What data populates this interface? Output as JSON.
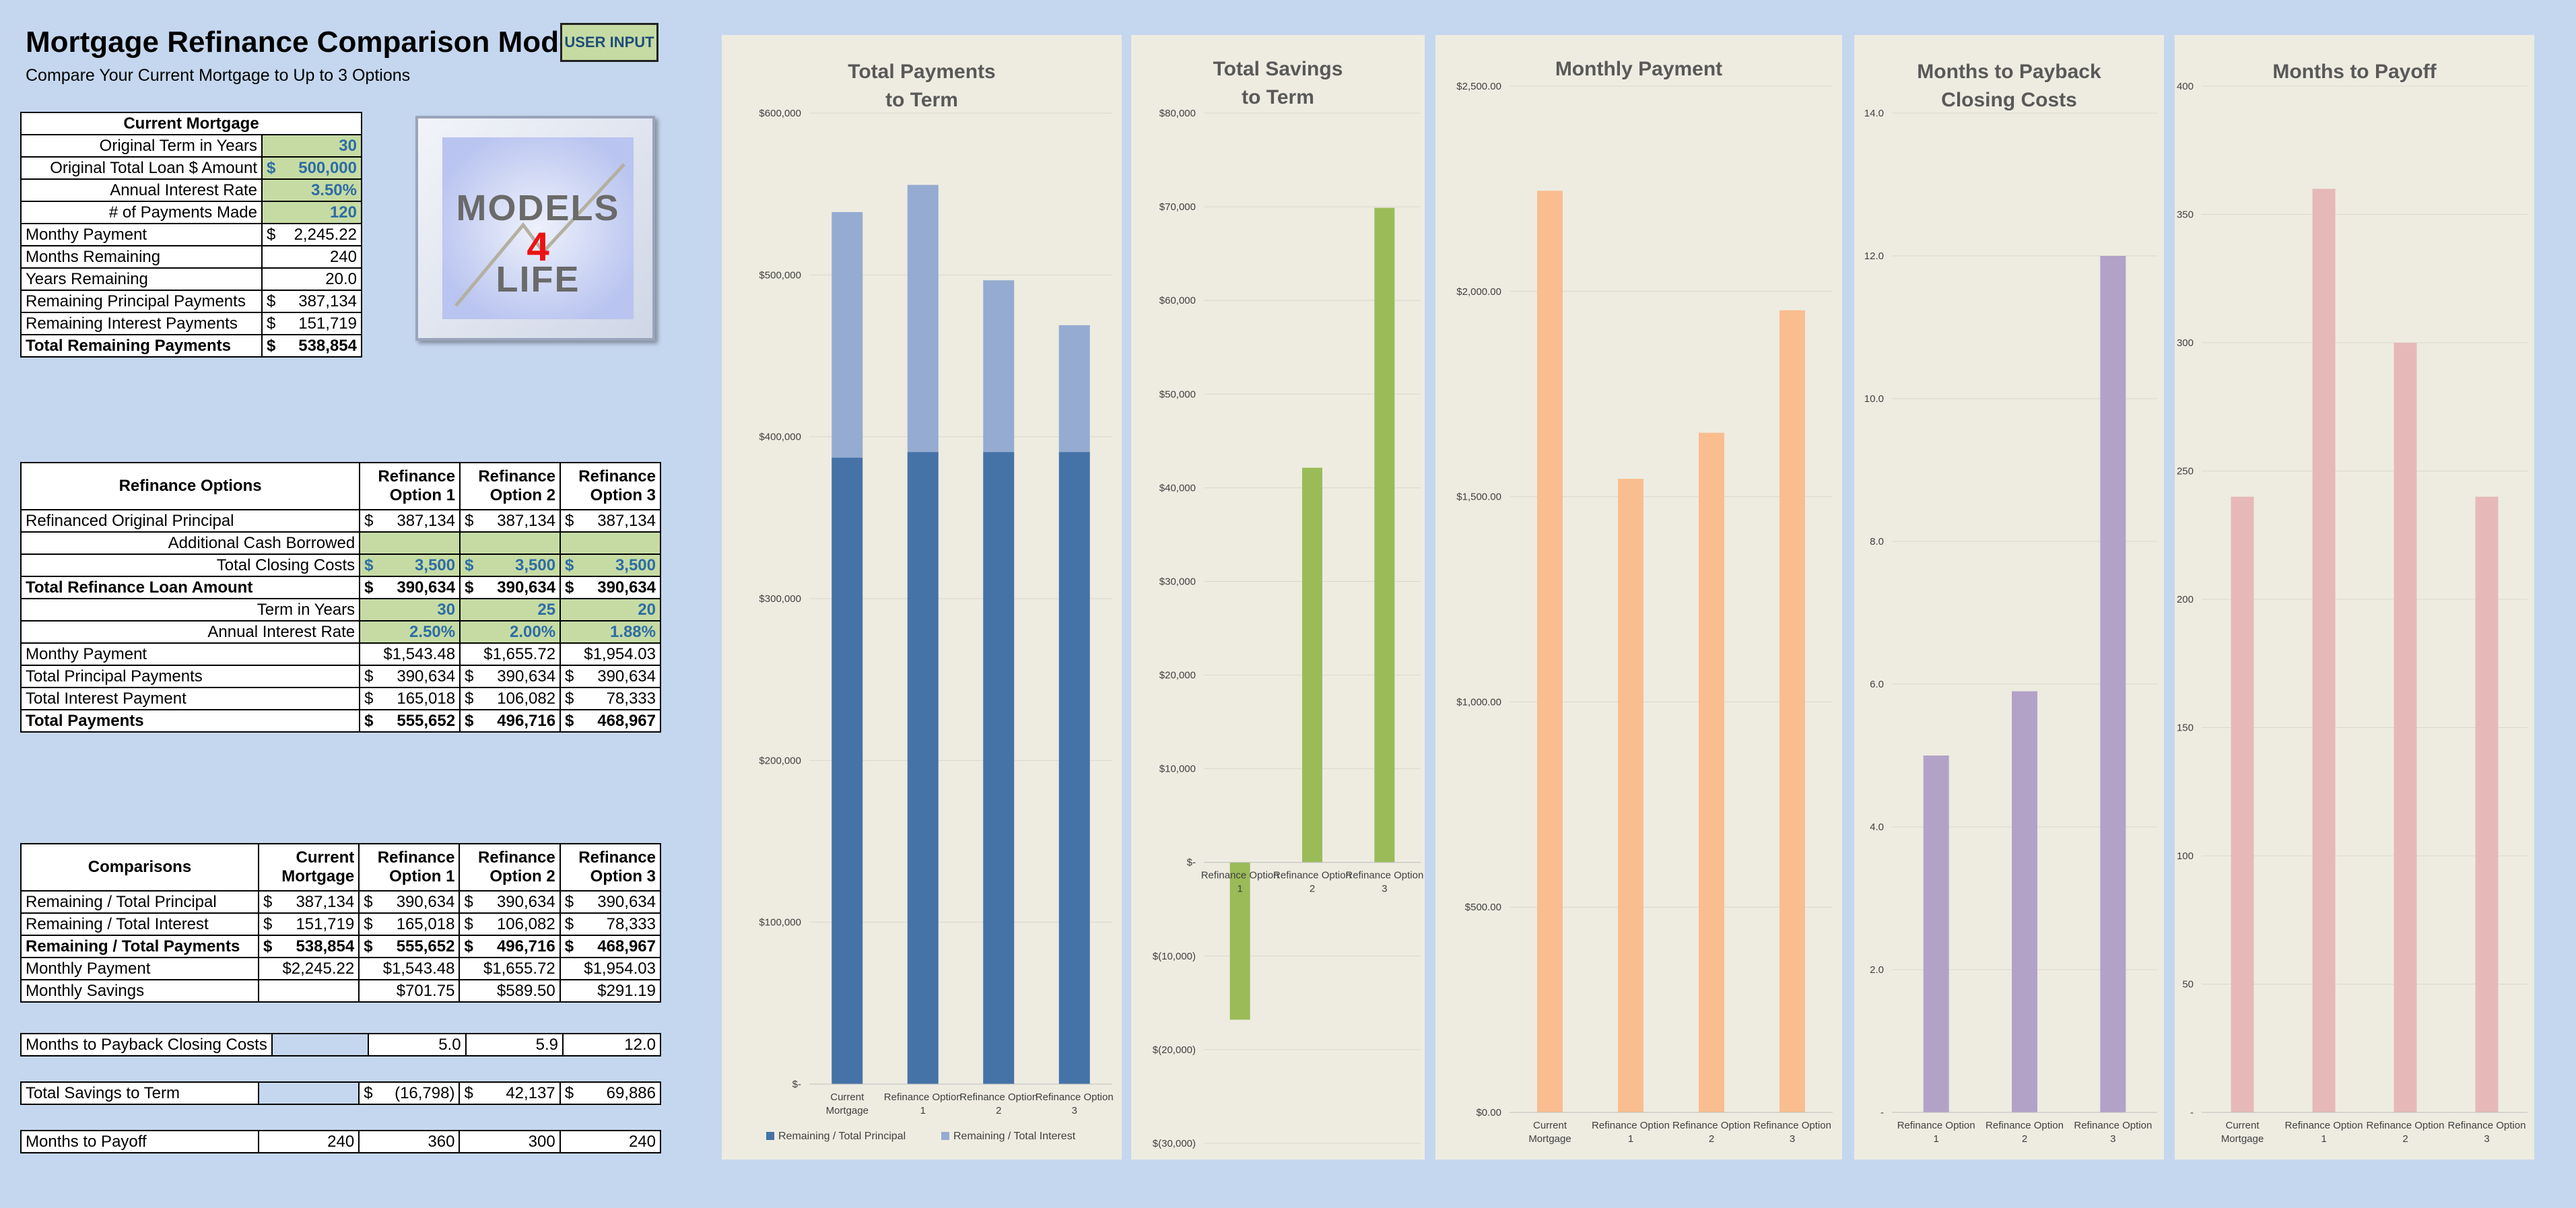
{
  "header": {
    "title": "Mortgage Refinance Comparison Model",
    "subtitle": "Compare Your Current Mortgage to Up to 3 Options",
    "user_input_label": "USER INPUT"
  },
  "logo": {
    "line1": "Models",
    "line2": "4",
    "line3": "Life"
  },
  "current_mortgage": {
    "heading": "Current Mortgage",
    "rows": [
      {
        "label": "Original Term in Years",
        "value": "30",
        "input": true,
        "align": "right"
      },
      {
        "label": "Original Total Loan $ Amount",
        "value": "500,000",
        "currency": true,
        "input": true,
        "align": "right"
      },
      {
        "label": "Annual Interest Rate",
        "value": "3.50%",
        "input": true,
        "align": "right"
      },
      {
        "label": "# of Payments Made",
        "value": "120",
        "input": true,
        "align": "right"
      },
      {
        "label": "Monthy Payment",
        "value": "2,245.22",
        "currency": true
      },
      {
        "label": "Months Remaining",
        "value": "240"
      },
      {
        "label": "Years Remaining",
        "value": "20.0"
      },
      {
        "label": "Remaining Principal Payments",
        "value": "387,134",
        "currency": true
      },
      {
        "label": "Remaining Interest Payments",
        "value": "151,719",
        "currency": true
      },
      {
        "label": "Total Remaining Payments",
        "value": "538,854",
        "currency": true,
        "bold": true
      }
    ]
  },
  "refinance_options": {
    "heading": "Refinance Options",
    "col_headers": [
      "Refinance Option 1",
      "Refinance Option 2",
      "Refinance Option 3"
    ],
    "rows": [
      {
        "label": "Refinanced Original Principal",
        "values": [
          "387,134",
          "387,134",
          "387,134"
        ],
        "currency": true
      },
      {
        "label": "Additional Cash Borrowed",
        "values": [
          "",
          "",
          ""
        ],
        "input": true,
        "label_align": "right"
      },
      {
        "label": "Total Closing Costs",
        "values": [
          "3,500",
          "3,500",
          "3,500"
        ],
        "currency": true,
        "input": true,
        "label_align": "right"
      },
      {
        "label": "Total Refinance Loan Amount",
        "values": [
          "390,634",
          "390,634",
          "390,634"
        ],
        "currency": true,
        "bold": true
      },
      {
        "label": "Term in Years",
        "values": [
          "30",
          "25",
          "20"
        ],
        "input": true,
        "label_align": "right"
      },
      {
        "label": "Annual Interest Rate",
        "values": [
          "2.50%",
          "2.00%",
          "1.88%"
        ],
        "input": true,
        "label_align": "right"
      },
      {
        "label": "Monthy Payment",
        "values": [
          "$1,543.48",
          "$1,655.72",
          "$1,954.03"
        ]
      },
      {
        "label": "Total Principal Payments",
        "values": [
          "390,634",
          "390,634",
          "390,634"
        ],
        "currency": true
      },
      {
        "label": "Total Interest Payment",
        "values": [
          "165,018",
          "106,082",
          "78,333"
        ],
        "currency": true
      },
      {
        "label": "Total Payments",
        "values": [
          "555,652",
          "496,716",
          "468,967"
        ],
        "currency": true,
        "bold": true
      }
    ]
  },
  "comparisons": {
    "heading": "Comparisons",
    "col_headers": [
      "Current Mortgage",
      "Refinance Option 1",
      "Refinance Option 2",
      "Refinance Option 3"
    ],
    "rows": [
      {
        "label": "Remaining / Total Principal",
        "values": [
          "387,134",
          "390,634",
          "390,634",
          "390,634"
        ],
        "currency": true
      },
      {
        "label": "Remaining / Total Interest",
        "values": [
          "151,719",
          "165,018",
          "106,082",
          "78,333"
        ],
        "currency": true
      },
      {
        "label": "Remaining / Total Payments",
        "values": [
          "538,854",
          "555,652",
          "496,716",
          "468,967"
        ],
        "currency": true,
        "bold": true
      },
      {
        "label": "Monthly Payment",
        "values": [
          "$2,245.22",
          "$1,543.48",
          "$1,655.72",
          "$1,954.03"
        ]
      },
      {
        "label": "Monthly Savings",
        "values": [
          "",
          "$701.75",
          "$589.50",
          "$291.19"
        ]
      }
    ],
    "payback": {
      "label": "Months to Payback Closing Costs",
      "values": [
        "5.0",
        "5.9",
        "12.0"
      ]
    },
    "savings": {
      "label": "Total Savings to Term",
      "values": [
        "(16,798)",
        "42,137",
        "69,886"
      ]
    },
    "payoff": {
      "label": "Months to Payoff",
      "values": [
        "240",
        "360",
        "300",
        "240"
      ]
    }
  },
  "chart_data": [
    {
      "type": "bar",
      "stacked": true,
      "title": "Total Payments to Term",
      "title_lines": [
        "Total Payments",
        "to Term"
      ],
      "categories": [
        "Current Mortgage",
        "Refinance Option 1",
        "Refinance Option 2",
        "Refinance Option 3"
      ],
      "series": [
        {
          "name": "Remaining / Total Principal",
          "values": [
            387134,
            390634,
            390634,
            390634
          ],
          "color": "#4572a7"
        },
        {
          "name": "Remaining / Total Interest",
          "values": [
            151719,
            165018,
            106082,
            78333
          ],
          "color": "#95abd1"
        }
      ],
      "ylim": [
        0,
        600000
      ],
      "yticks": [
        0,
        100000,
        200000,
        300000,
        400000,
        500000,
        600000
      ],
      "ytick_labels": [
        "$-",
        "$100,000",
        "$200,000",
        "$300,000",
        "$400,000",
        "$500,000",
        "$600,000"
      ],
      "legend": "bottom",
      "grid": true
    },
    {
      "type": "bar",
      "title": "Total Savings to Term",
      "title_lines": [
        "Total Savings",
        "to Term"
      ],
      "categories": [
        "Refinance Option 1",
        "Refinance Option 2",
        "Refinance Option 3"
      ],
      "values": [
        -16798,
        42137,
        69886
      ],
      "color": "#9bbb59",
      "ylim": [
        -30000,
        80000
      ],
      "yticks": [
        -30000,
        -20000,
        -10000,
        0,
        10000,
        20000,
        30000,
        40000,
        50000,
        60000,
        70000,
        80000
      ],
      "ytick_labels": [
        "$(30,000)",
        "$(20,000)",
        "$(10,000)",
        "$-",
        "$10,000",
        "$20,000",
        "$30,000",
        "$40,000",
        "$50,000",
        "$60,000",
        "$70,000",
        "$80,000"
      ],
      "grid": true
    },
    {
      "type": "bar",
      "title": "Monthly Payment",
      "title_lines": [
        "Monthly Payment"
      ],
      "categories": [
        "Current Mortgage",
        "Refinance Option 1",
        "Refinance Option 2",
        "Refinance Option 3"
      ],
      "values": [
        2245.22,
        1543.48,
        1655.72,
        1954.03
      ],
      "color": "#f9bd8f",
      "ylim": [
        0,
        2500
      ],
      "yticks": [
        0,
        500,
        1000,
        1500,
        2000,
        2500
      ],
      "ytick_labels": [
        "$0.00",
        "$500.00",
        "$1,000.00",
        "$1,500.00",
        "$2,000.00",
        "$2,500.00"
      ],
      "grid": true
    },
    {
      "type": "bar",
      "title": "Months to Payback Closing Costs",
      "title_lines": [
        "Months to Payback",
        "Closing Costs"
      ],
      "categories": [
        "Refinance Option 1",
        "Refinance Option 2",
        "Refinance Option 3"
      ],
      "values": [
        5.0,
        5.9,
        12.0
      ],
      "color": "#b3a2c7",
      "ylim": [
        0,
        14
      ],
      "yticks": [
        0,
        2,
        4,
        6,
        8,
        10,
        12,
        14
      ],
      "ytick_labels": [
        "-",
        "2.0",
        "4.0",
        "6.0",
        "8.0",
        "10.0",
        "12.0",
        "14.0"
      ],
      "grid": true
    },
    {
      "type": "bar",
      "title": "Months to Payoff",
      "title_lines": [
        "Months to Payoff"
      ],
      "categories": [
        "Current Mortgage",
        "Refinance Option 1",
        "Refinance Option 2",
        "Refinance Option 3"
      ],
      "values": [
        240,
        360,
        300,
        240
      ],
      "color": "#e6b9b8",
      "ylim": [
        0,
        400
      ],
      "yticks": [
        0,
        50,
        100,
        150,
        200,
        250,
        300,
        350,
        400
      ],
      "ytick_labels": [
        "-",
        "50",
        "100",
        "150",
        "200",
        "250",
        "300",
        "350",
        "400"
      ],
      "grid": true
    }
  ]
}
